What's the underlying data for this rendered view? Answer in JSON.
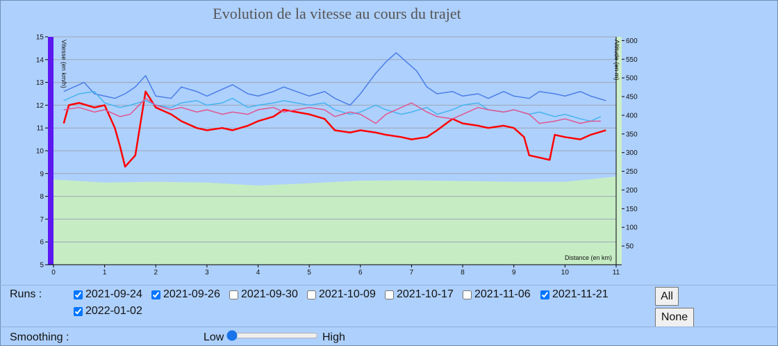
{
  "chart_data": {
    "type": "line",
    "title": "Evolution de la vitesse au cours du trajet",
    "ylabel": "Vitesse (en km/h)",
    "y2label": "Altitude (en m)",
    "xlabel": "Distance (en km)",
    "xlim": [
      0,
      11
    ],
    "ylim": [
      5,
      15
    ],
    "y2lim": [
      0,
      610
    ],
    "xticks": [
      "0",
      "1",
      "2",
      "3",
      "4",
      "5",
      "6",
      "7",
      "8",
      "9",
      "10",
      "11"
    ],
    "yticks": [
      "5",
      "6",
      "7",
      "8",
      "9",
      "10",
      "11",
      "12",
      "13",
      "14",
      "15"
    ],
    "y2ticks": [
      "50",
      "100",
      "150",
      "200",
      "250",
      "300",
      "350",
      "400",
      "450",
      "500",
      "550",
      "600"
    ],
    "grid": true,
    "altitude": {
      "x": [
        0,
        1,
        2,
        3,
        4,
        5,
        6,
        7,
        8,
        9,
        10,
        11
      ],
      "values": [
        228,
        220,
        222,
        220,
        212,
        218,
        225,
        226,
        224,
        222,
        222,
        236
      ]
    },
    "series": [
      {
        "color": "#ff0000",
        "x": [
          0.2,
          0.3,
          0.5,
          0.8,
          1.0,
          1.2,
          1.3,
          1.4,
          1.6,
          1.8,
          2.0,
          2.3,
          2.5,
          2.8,
          3.0,
          3.3,
          3.5,
          3.8,
          4.0,
          4.3,
          4.5,
          5.0,
          5.3,
          5.5,
          5.8,
          6.0,
          6.3,
          6.5,
          6.8,
          7.0,
          7.3,
          7.5,
          7.8,
          8.0,
          8.3,
          8.5,
          8.8,
          9.0,
          9.2,
          9.3,
          9.5,
          9.7,
          9.8,
          10.0,
          10.3,
          10.5,
          10.8
        ],
        "values": [
          11.2,
          12.0,
          12.1,
          11.9,
          12.0,
          11.0,
          10.2,
          9.3,
          9.8,
          12.6,
          11.9,
          11.6,
          11.3,
          11.0,
          10.9,
          11.0,
          10.9,
          11.1,
          11.3,
          11.5,
          11.8,
          11.6,
          11.4,
          10.9,
          10.8,
          10.9,
          10.8,
          10.7,
          10.6,
          10.5,
          10.6,
          10.9,
          11.4,
          11.2,
          11.1,
          11.0,
          11.1,
          11.0,
          10.6,
          9.8,
          9.7,
          9.6,
          10.7,
          10.6,
          10.5,
          10.7,
          10.9
        ]
      },
      {
        "color": "#4a7ee8",
        "x": [
          0.2,
          0.4,
          0.6,
          0.8,
          1.0,
          1.2,
          1.4,
          1.6,
          1.8,
          2.0,
          2.3,
          2.5,
          2.8,
          3.0,
          3.3,
          3.5,
          3.8,
          4.0,
          4.3,
          4.5,
          5.0,
          5.3,
          5.5,
          5.8,
          6.0,
          6.3,
          6.5,
          6.7,
          6.9,
          7.1,
          7.3,
          7.5,
          7.8,
          8.0,
          8.3,
          8.5,
          8.8,
          9.0,
          9.3,
          9.5,
          9.8,
          10.0,
          10.3,
          10.5,
          10.8
        ],
        "values": [
          12.6,
          12.8,
          13.0,
          12.5,
          12.4,
          12.3,
          12.5,
          12.8,
          13.3,
          12.4,
          12.3,
          12.8,
          12.6,
          12.4,
          12.7,
          12.9,
          12.5,
          12.4,
          12.6,
          12.8,
          12.4,
          12.6,
          12.3,
          12.0,
          12.5,
          13.4,
          13.9,
          14.3,
          13.9,
          13.5,
          12.8,
          12.5,
          12.6,
          12.4,
          12.5,
          12.3,
          12.6,
          12.4,
          12.3,
          12.6,
          12.5,
          12.4,
          12.6,
          12.4,
          12.2
        ]
      },
      {
        "color": "#46b4f0",
        "x": [
          0.2,
          0.5,
          0.8,
          1.0,
          1.3,
          1.5,
          1.8,
          2.0,
          2.3,
          2.5,
          2.8,
          3.0,
          3.3,
          3.5,
          3.8,
          4.0,
          4.3,
          4.5,
          5.0,
          5.3,
          5.5,
          5.8,
          6.0,
          6.3,
          6.5,
          6.8,
          7.0,
          7.3,
          7.5,
          7.8,
          8.0,
          8.3,
          8.5,
          8.8,
          9.0,
          9.3,
          9.5,
          9.8,
          10.0,
          10.3,
          10.5,
          10.7
        ],
        "values": [
          12.2,
          12.5,
          12.6,
          12.1,
          11.9,
          12.0,
          12.2,
          12.0,
          11.9,
          12.1,
          12.2,
          12.0,
          12.1,
          12.3,
          11.9,
          12.0,
          12.1,
          12.2,
          12.0,
          12.1,
          11.8,
          11.6,
          11.7,
          12.0,
          11.8,
          11.6,
          11.7,
          11.9,
          11.6,
          11.8,
          12.0,
          12.1,
          11.8,
          11.7,
          11.8,
          11.6,
          11.7,
          11.5,
          11.6,
          11.4,
          11.3,
          11.5
        ]
      },
      {
        "color": "#e15590",
        "x": [
          0.2,
          0.5,
          0.8,
          1.0,
          1.3,
          1.5,
          1.8,
          2.0,
          2.3,
          2.5,
          2.8,
          3.0,
          3.3,
          3.5,
          3.8,
          4.0,
          4.3,
          4.5,
          5.0,
          5.3,
          5.5,
          5.8,
          6.0,
          6.3,
          6.5,
          6.8,
          7.0,
          7.3,
          7.5,
          7.8,
          8.0,
          8.3,
          8.5,
          8.8,
          9.0,
          9.3,
          9.5,
          9.8,
          10.0,
          10.3,
          10.5,
          10.7
        ],
        "values": [
          11.8,
          11.9,
          11.7,
          11.8,
          11.5,
          11.6,
          12.3,
          12.0,
          11.8,
          11.9,
          11.7,
          11.8,
          11.6,
          11.7,
          11.6,
          11.8,
          11.9,
          11.7,
          11.9,
          11.8,
          11.5,
          11.7,
          11.6,
          11.2,
          11.6,
          11.9,
          12.1,
          11.7,
          11.5,
          11.4,
          11.6,
          11.9,
          11.8,
          11.7,
          11.8,
          11.6,
          11.2,
          11.3,
          11.4,
          11.2,
          11.3,
          11.3
        ]
      }
    ]
  },
  "controls": {
    "runs_label": "Runs :",
    "runs": [
      {
        "label": "2021-09-24",
        "checked": true
      },
      {
        "label": "2021-09-26",
        "checked": true
      },
      {
        "label": "2021-09-30",
        "checked": false
      },
      {
        "label": "2021-10-09",
        "checked": false
      },
      {
        "label": "2021-10-17",
        "checked": false
      },
      {
        "label": "2021-11-06",
        "checked": false
      },
      {
        "label": "2021-11-21",
        "checked": true
      },
      {
        "label": "2022-01-02",
        "checked": true
      }
    ],
    "all_label": "All",
    "none_label": "None",
    "smoothing_label": "Smoothing :",
    "low_label": "Low",
    "high_label": "High",
    "smoothing_value": 0
  },
  "colors": {
    "background": "#aed0fc",
    "altitude_fill": "#c6ecc4",
    "left_axis_bar": "#5b18f0",
    "right_axis_bar": "#cdefcc"
  }
}
